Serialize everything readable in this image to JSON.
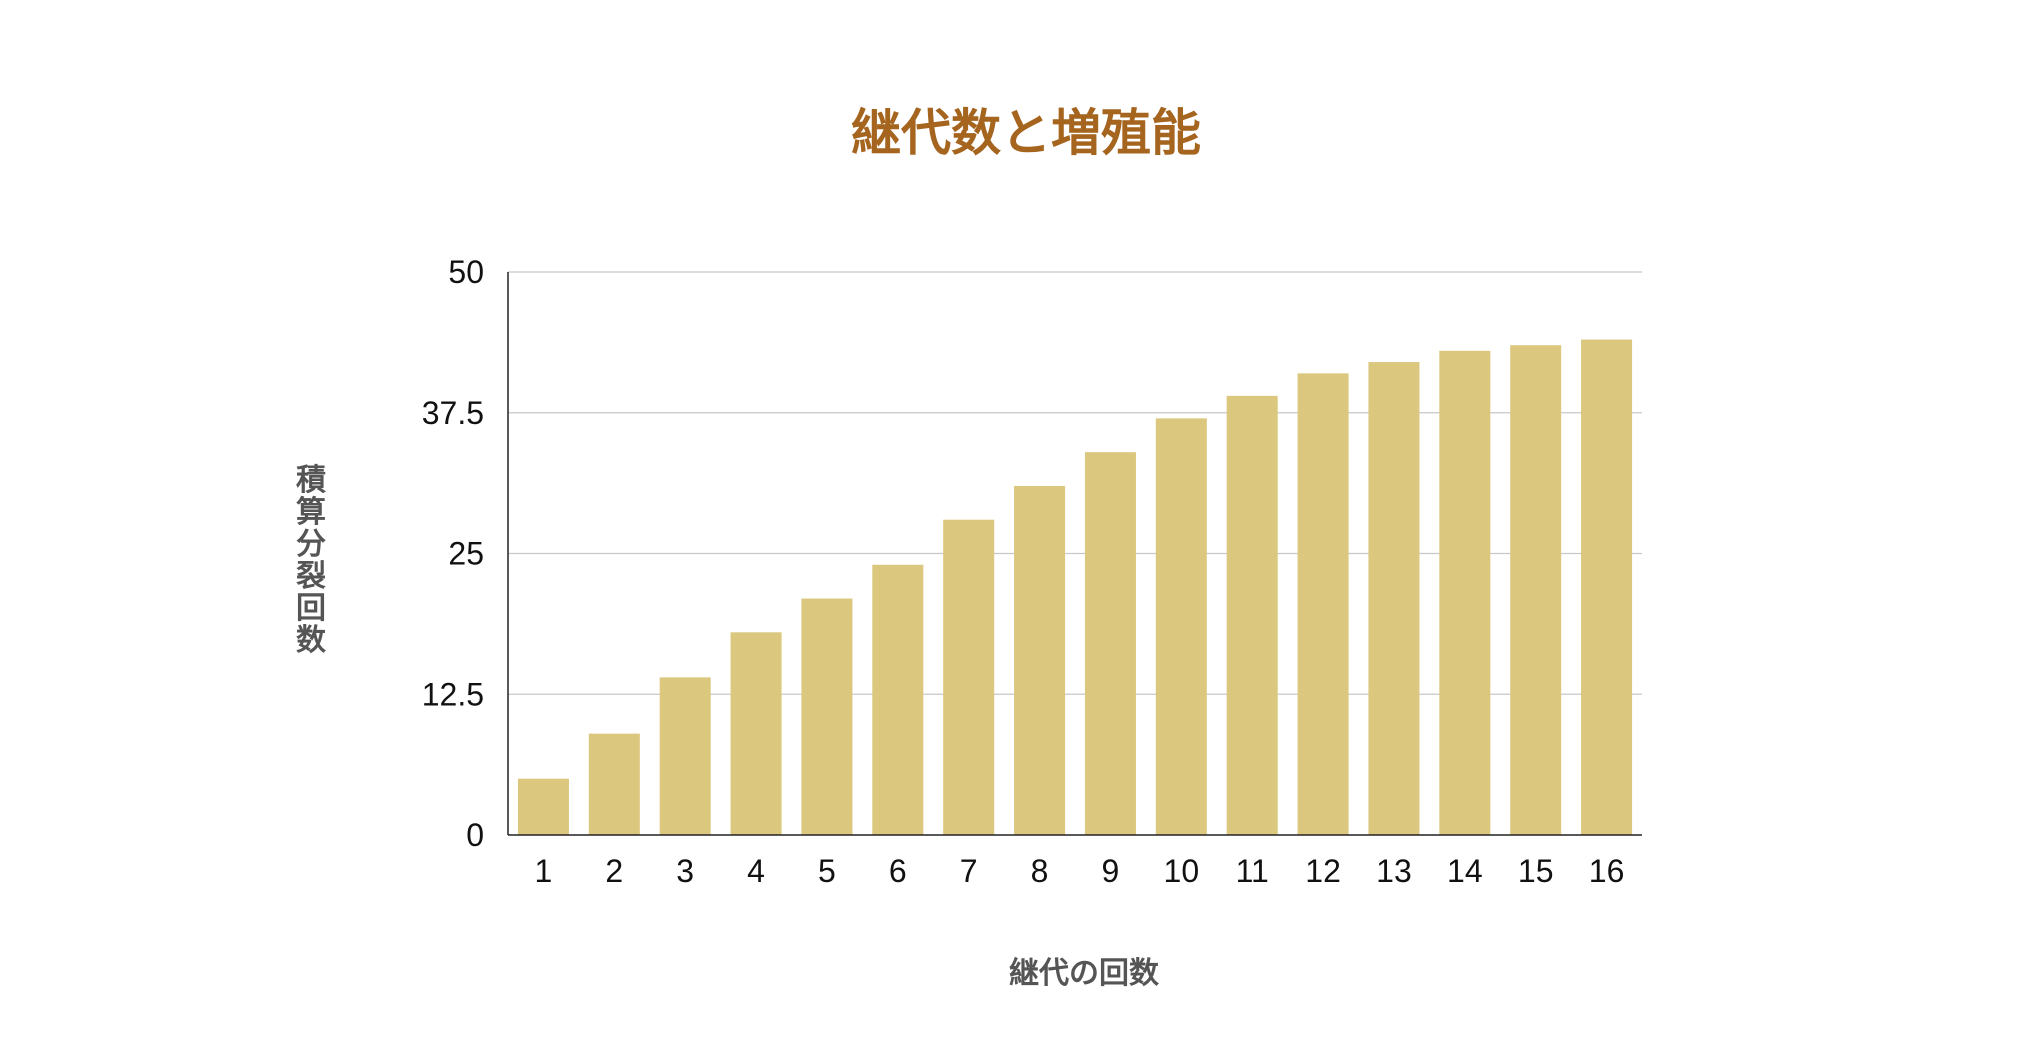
{
  "chart_data": {
    "type": "bar",
    "title": "継代数と増殖能",
    "xlabel": "継代の回数",
    "ylabel": "積算分裂回数",
    "categories": [
      "1",
      "2",
      "3",
      "4",
      "5",
      "6",
      "7",
      "8",
      "9",
      "10",
      "11",
      "12",
      "13",
      "14",
      "15",
      "16"
    ],
    "series": [
      {
        "values": [
          5,
          9,
          14,
          18,
          21,
          24,
          28,
          31,
          34,
          37,
          39,
          41,
          42,
          43,
          43.5,
          44
        ]
      }
    ],
    "ylim": [
      0,
      50
    ],
    "yticks": [
      "0",
      "12.5",
      "25",
      "37.5",
      "50"
    ],
    "grid": true,
    "bar_color": "#dcc77e",
    "title_color": "#a5651f",
    "gridline_color": "#c8c8c8"
  }
}
